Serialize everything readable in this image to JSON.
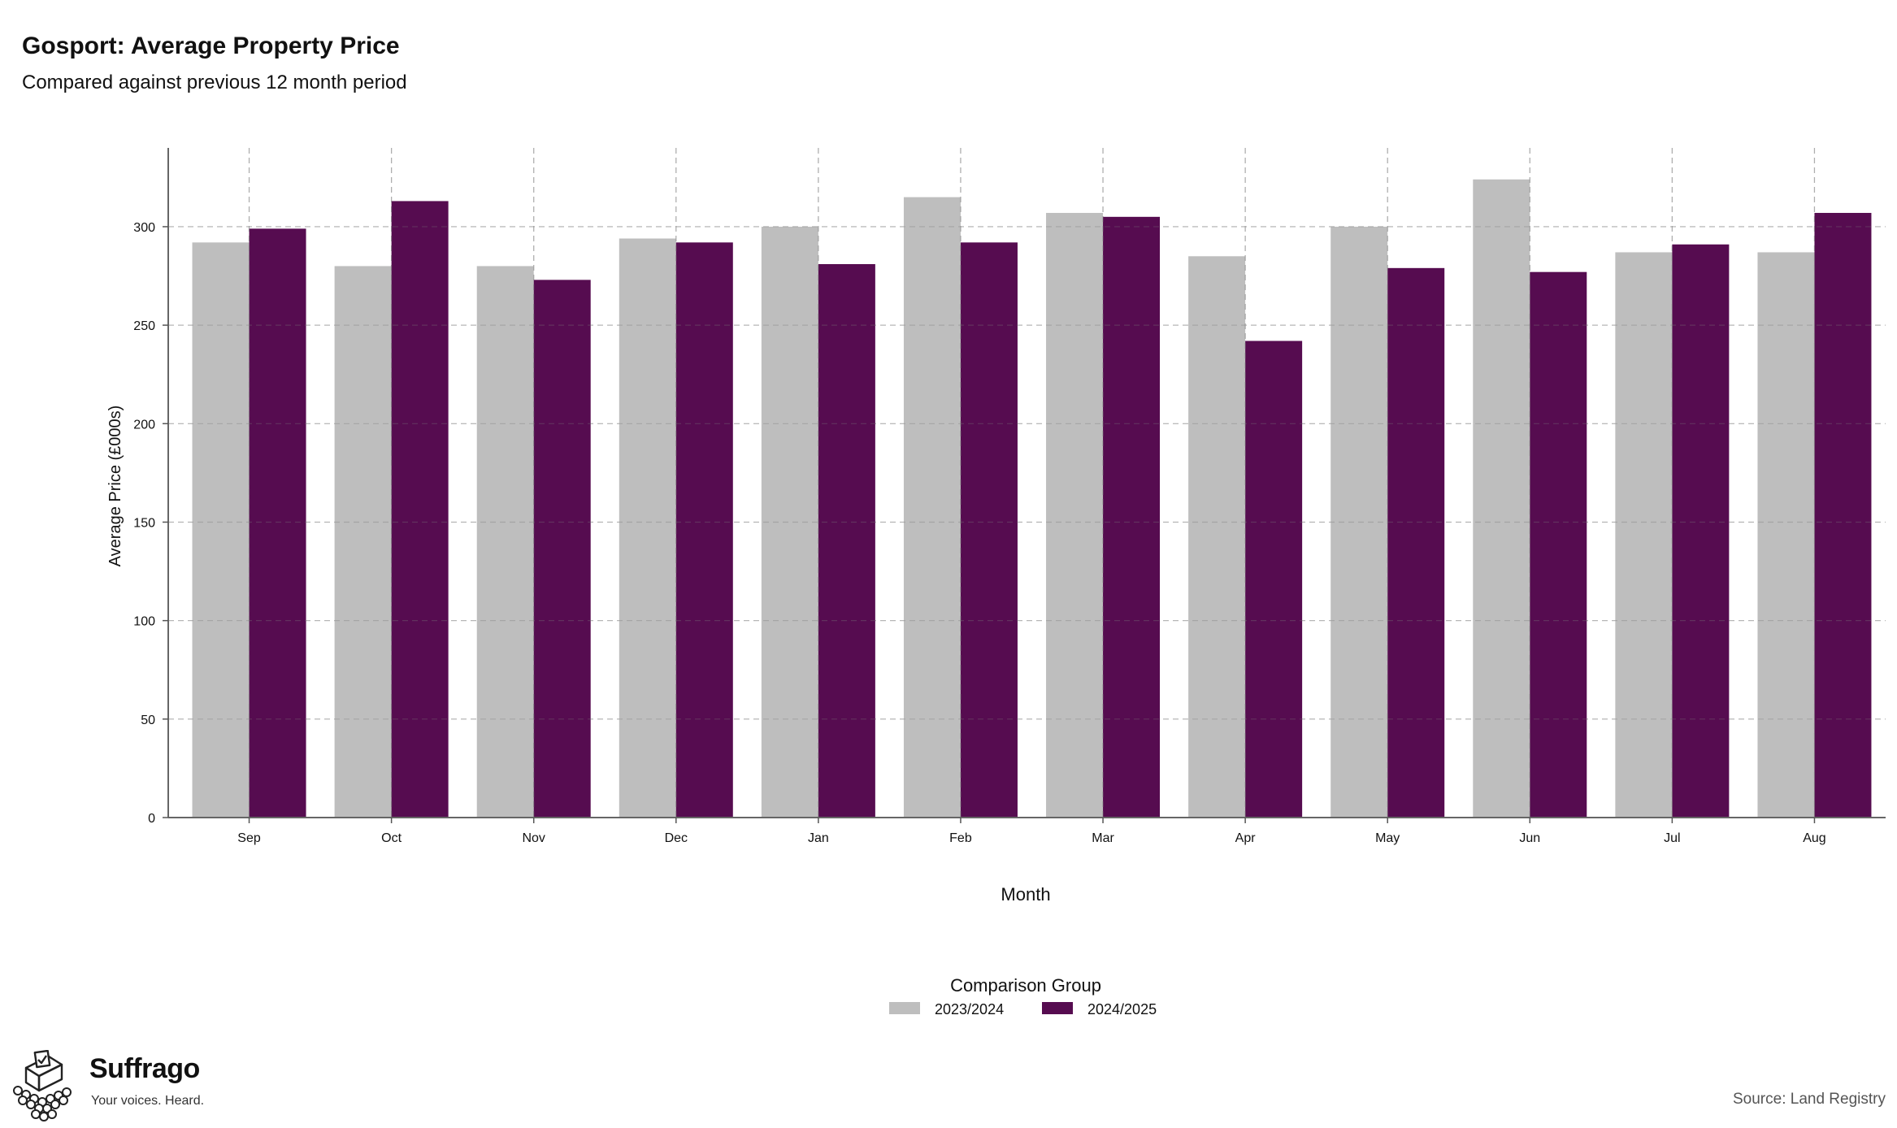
{
  "header": {
    "title": "Gosport: Average Property Price",
    "subtitle": "Compared against previous 12 month period"
  },
  "chart_data": {
    "type": "bar",
    "categories": [
      "Sep",
      "Oct",
      "Nov",
      "Dec",
      "Jan",
      "Feb",
      "Mar",
      "Apr",
      "May",
      "Jun",
      "Jul",
      "Aug"
    ],
    "series": [
      {
        "name": "2023/2024",
        "color": "#bebebe",
        "values": [
          292,
          280,
          280,
          294,
          300,
          315,
          307,
          285,
          300,
          324,
          287,
          287
        ]
      },
      {
        "name": "2024/2025",
        "color": "#560c50",
        "values": [
          299,
          313,
          273,
          292,
          281,
          292,
          305,
          242,
          279,
          277,
          291,
          307
        ]
      }
    ],
    "xlabel": "Month",
    "ylabel": "Average Price (£000s)",
    "ylim": [
      0,
      340
    ],
    "yticks": [
      0,
      50,
      100,
      150,
      200,
      250,
      300
    ],
    "grid": true,
    "legend_title": "Comparison Group",
    "legend_position": "bottom"
  },
  "brand": {
    "name": "Suffrago",
    "tagline": "Your voices. Heard."
  },
  "source": "Source: Land Registry",
  "colors": {
    "series_2023": "#bebebe",
    "series_2024": "#560c50",
    "grid": "#d9d9d9"
  }
}
